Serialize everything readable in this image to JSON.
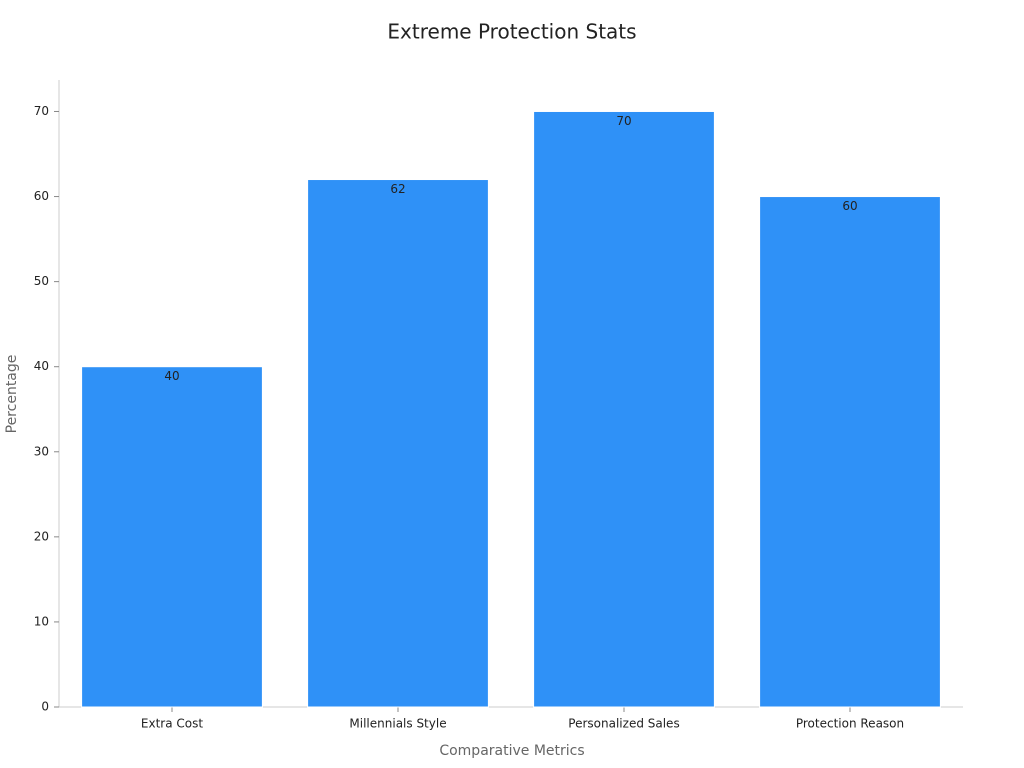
{
  "chart_data": {
    "type": "bar",
    "title": "Extreme Protection Stats",
    "x_label": "Comparative Metrics",
    "y_label": "Percentage",
    "categories": [
      "Extra Cost",
      "Millennials Style",
      "Personalized Sales",
      "Protection Reason"
    ],
    "values": [
      40,
      62,
      70,
      60
    ],
    "color": "#2f91f7",
    "ylim": [
      0,
      73.7
    ],
    "yticks": [
      0,
      10,
      20,
      30,
      40,
      50,
      60,
      70
    ],
    "grid": false
  }
}
